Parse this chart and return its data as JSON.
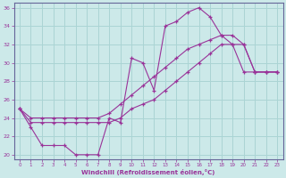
{
  "xlabel": "Windchill (Refroidissement éolien,°C)",
  "xlim": [
    -0.5,
    23.5
  ],
  "ylim": [
    19.5,
    36.5
  ],
  "yticks": [
    20,
    22,
    24,
    26,
    28,
    30,
    32,
    34,
    36
  ],
  "xticks": [
    0,
    1,
    2,
    3,
    4,
    5,
    6,
    7,
    8,
    9,
    10,
    11,
    12,
    13,
    14,
    15,
    16,
    17,
    18,
    19,
    20,
    21,
    22,
    23
  ],
  "background_color": "#cce9e9",
  "grid_color": "#aad4d4",
  "line_color": "#993399",
  "line1_y": [
    25,
    23,
    21,
    21,
    21,
    20,
    20,
    20,
    24,
    23.5,
    30.5,
    30,
    27,
    34,
    34.5,
    35.5,
    36,
    35,
    33,
    32,
    29,
    29,
    29,
    29
  ],
  "line2_y": [
    25,
    24,
    24,
    24,
    24,
    24,
    24,
    24,
    24.5,
    25.5,
    26.5,
    27.5,
    28.5,
    29.5,
    30.5,
    31.5,
    32,
    32.5,
    33,
    33,
    32,
    29,
    29,
    29
  ],
  "line3_y": [
    25,
    23.5,
    23.5,
    23.5,
    23.5,
    23.5,
    23.5,
    23.5,
    23.5,
    24,
    25,
    25.5,
    26,
    27,
    28,
    29,
    30,
    31,
    32,
    32,
    32,
    29,
    29,
    29
  ]
}
